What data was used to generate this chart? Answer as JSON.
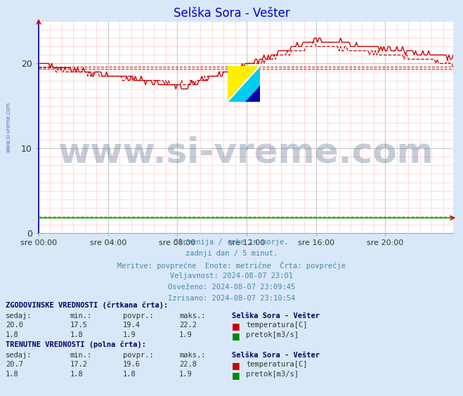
{
  "title": "Selška Sora - Vešter",
  "title_color": "#0000cc",
  "bg_color": "#d8e8f8",
  "plot_bg_color": "#ffffff",
  "grid_color_major": "#c8c8c8",
  "grid_color_minor": "#ffcccc",
  "xlim": [
    0,
    287
  ],
  "ylim": [
    0,
    25
  ],
  "yticks": [
    0,
    10,
    20
  ],
  "xtick_labels": [
    "sre 00:00",
    "sre 04:00",
    "sre 08:00",
    "sre 12:00",
    "sre 16:00",
    "sre 20:00"
  ],
  "xtick_positions": [
    0,
    48,
    96,
    144,
    192,
    240
  ],
  "temp_solid_color": "#cc0000",
  "temp_dashed_color": "#cc0000",
  "flow_color": "#00aa00",
  "watermark_text": "www.si-vreme.com",
  "watermark_color": "#1a3a6b",
  "watermark_alpha": 0.25,
  "sidebar_text": "www.si-vreme.com",
  "sidebar_color": "#5577bb",
  "info_lines": [
    "Slovenija / reke in morje.",
    "zadnji dan / 5 minut.",
    "Meritve: povprečne  Enote: metrične  Črta: povprečje",
    "Veljavnost: 2024-08-07 23:01",
    "Osveženo: 2024-08-07 23:09:45",
    "Izrisano: 2024-08-07 23:10:54"
  ],
  "hist_label": "ZGODOVINSKE VREDNOSTI (črtkana črta):",
  "curr_label": "TRENUTNE VREDNOSTI (polna črta):",
  "hist_temp": [
    20.0,
    17.5,
    19.4,
    22.2
  ],
  "hist_flow": [
    1.8,
    1.8,
    1.9,
    1.9
  ],
  "curr_temp": [
    20.7,
    17.2,
    19.6,
    22.8
  ],
  "curr_flow": [
    1.8,
    1.8,
    1.8,
    1.9
  ],
  "station_name": "Selška Sora - Vešter",
  "temp_unit": "temperatura[C]",
  "flow_unit": "pretok[m3/s]",
  "avg_hist_temp_line": 19.4,
  "avg_curr_temp_line": 19.6,
  "n_points": 288
}
